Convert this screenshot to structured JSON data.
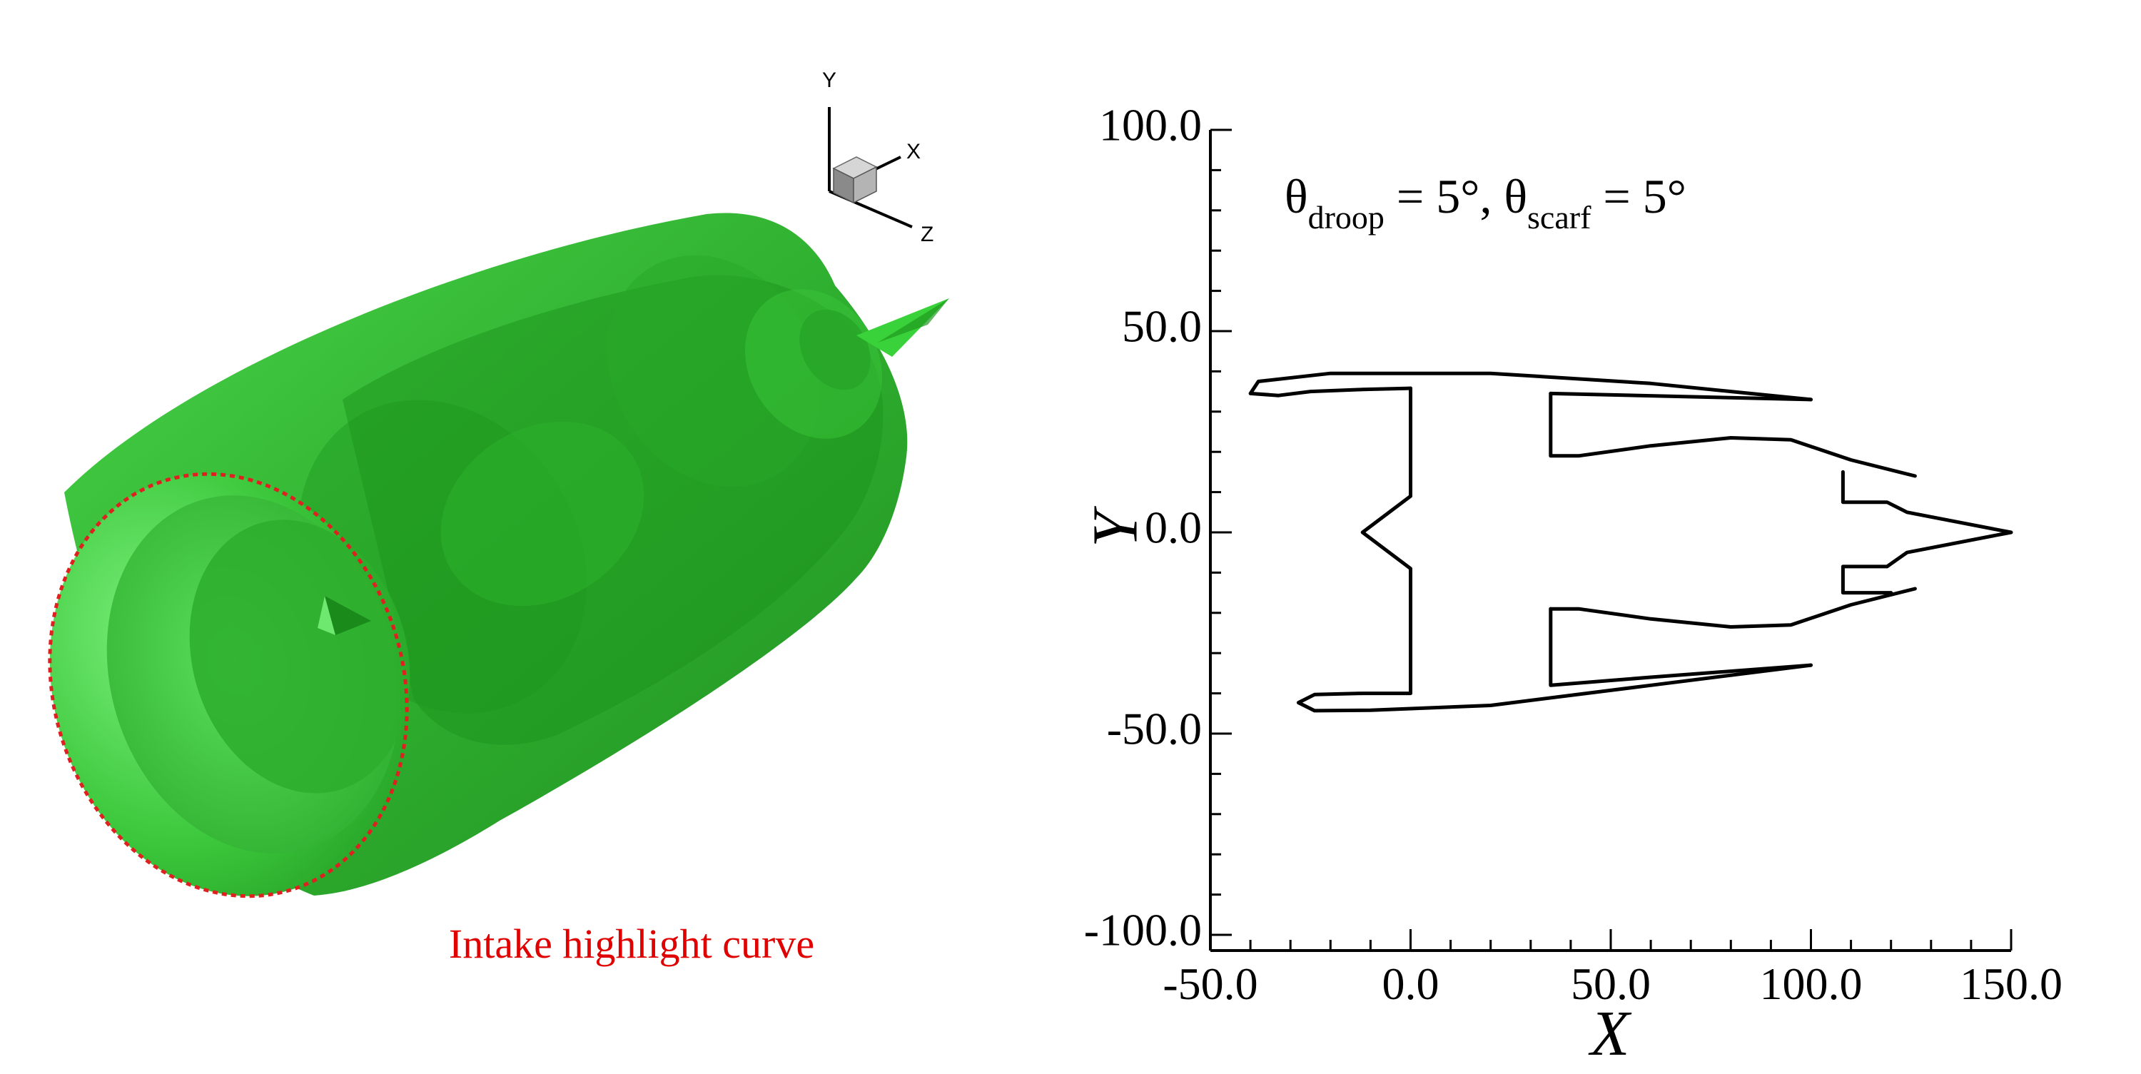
{
  "left_panel": {
    "triad": {
      "y_label": "Y",
      "x_label": "X",
      "z_label": "Z"
    },
    "highlight_caption": "Intake highlight curve",
    "colors": {
      "nacelle": "#2db52d",
      "highlight_curve": "#e02020",
      "caption": "#e00000"
    }
  },
  "right_panel": {
    "annotation": {
      "theta1": "θ",
      "sub1": "droop",
      "mid": " = 5°, θ",
      "sub2": "scarf",
      "end": "  = 5°"
    }
  },
  "chart_data": {
    "type": "line",
    "xlabel": "X",
    "ylabel": "Y",
    "xlim": [
      -50,
      150
    ],
    "ylim": [
      -100,
      100
    ],
    "xticks": [
      -50,
      0,
      50,
      100,
      150
    ],
    "yticks": [
      -100,
      -50,
      0,
      50,
      100
    ],
    "x_tick_labels": [
      "-50.0",
      "0.0",
      "50.0",
      "100.0",
      "150.0"
    ],
    "y_tick_labels": [
      "-100.0",
      "-50.0",
      "0.0",
      "50.0",
      "100.0"
    ],
    "grid": false,
    "series": [
      {
        "values": [
          [
            100,
            33
          ],
          [
            60,
            37
          ],
          [
            20,
            39.5
          ],
          [
            -20,
            39.5
          ],
          [
            -38,
            37.5
          ],
          [
            -40,
            34.5
          ],
          [
            -33,
            34
          ],
          [
            -25,
            35
          ],
          [
            -12,
            35.5
          ],
          [
            0,
            35.8
          ]
        ]
      },
      {
        "values": [
          [
            0,
            35.8
          ],
          [
            0,
            9
          ],
          [
            -12,
            0
          ],
          [
            0,
            -9
          ],
          [
            0,
            -40
          ],
          [
            -12,
            -40
          ],
          [
            -24,
            -40.3
          ],
          [
            -28,
            -42.3
          ],
          [
            -24,
            -44.3
          ],
          [
            -10,
            -44.2
          ],
          [
            20,
            -43
          ],
          [
            60,
            -38
          ],
          [
            100,
            -33
          ]
        ]
      },
      {
        "values": [
          [
            35,
            34.5
          ],
          [
            100,
            33
          ]
        ]
      },
      {
        "values": [
          [
            35,
            34.5
          ],
          [
            35,
            19
          ],
          [
            42,
            19
          ],
          [
            60,
            21.5
          ],
          [
            80,
            23.5
          ],
          [
            95,
            23
          ],
          [
            110,
            18
          ],
          [
            126,
            14
          ]
        ]
      },
      {
        "values": [
          [
            35,
            -19
          ],
          [
            35,
            -38
          ],
          [
            60,
            -36
          ],
          [
            100,
            -33
          ]
        ]
      },
      {
        "values": [
          [
            35,
            -19
          ],
          [
            42,
            -19
          ],
          [
            60,
            -21.5
          ],
          [
            80,
            -23.5
          ],
          [
            95,
            -23
          ],
          [
            110,
            -18
          ],
          [
            126,
            -14
          ]
        ]
      },
      {
        "values": [
          [
            108,
            15
          ],
          [
            108,
            7.5
          ],
          [
            119,
            7.5
          ],
          [
            124,
            5
          ],
          [
            150,
            0
          ],
          [
            124,
            -5
          ],
          [
            119,
            -8.5
          ],
          [
            108,
            -8.5
          ],
          [
            108,
            -15
          ],
          [
            120,
            -15
          ]
        ]
      }
    ]
  }
}
